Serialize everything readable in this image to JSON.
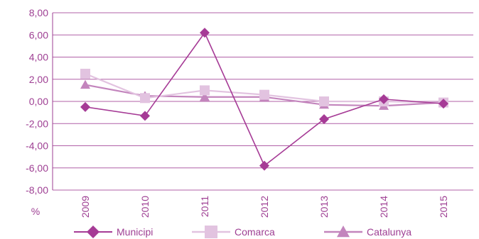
{
  "chart_data": {
    "type": "line",
    "x": [
      "2009",
      "2010",
      "2011",
      "2012",
      "2013",
      "2014",
      "2015"
    ],
    "ylim": [
      -8,
      8
    ],
    "yticks": [
      "8,00",
      "6,00",
      "4,00",
      "2,00",
      "0,00",
      "-2,00",
      "-4,00",
      "-6,00",
      "-8,00"
    ],
    "ylabel": "%",
    "grid": true,
    "legend_position": "bottom",
    "series": [
      {
        "name": "Municipi",
        "values": [
          -0.5,
          -1.3,
          6.2,
          -5.8,
          -1.6,
          0.2,
          -0.2
        ],
        "color": "#a63b96",
        "marker": "diamond"
      },
      {
        "name": "Comarca",
        "values": [
          2.5,
          0.3,
          1.0,
          0.6,
          0.0,
          0.0,
          -0.1
        ],
        "color": "#e2c3e0",
        "marker": "square"
      },
      {
        "name": "Catalunya",
        "values": [
          1.5,
          0.5,
          0.4,
          0.4,
          -0.3,
          -0.4,
          -0.1
        ],
        "color": "#c385bd",
        "marker": "triangle"
      }
    ]
  }
}
